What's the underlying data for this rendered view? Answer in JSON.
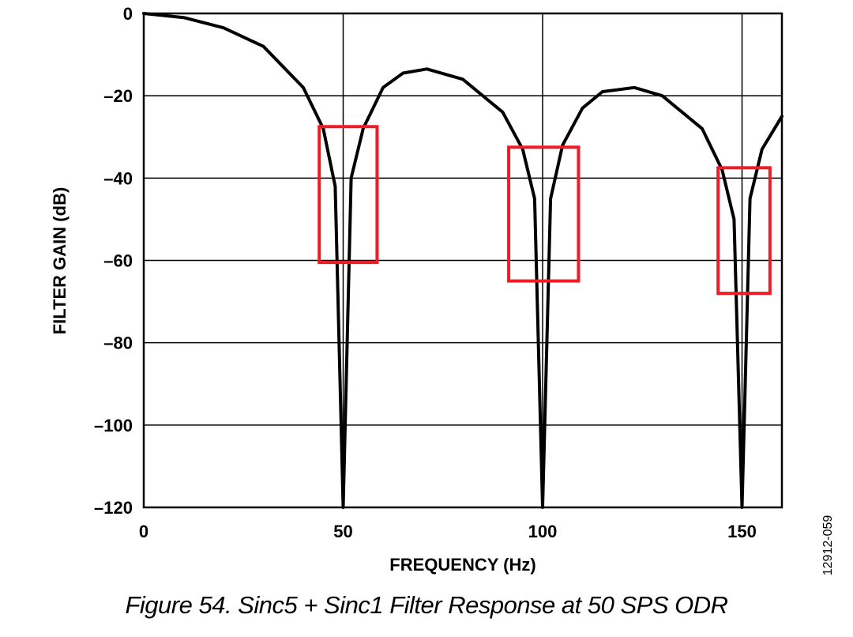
{
  "chart_data": {
    "type": "line",
    "title": "",
    "xlabel": "FREQUENCY (Hz)",
    "ylabel": "FILTER GAIN (dB)",
    "xlim": [
      0,
      160
    ],
    "ylim": [
      -120,
      0
    ],
    "grid": true,
    "x_ticks": [
      0,
      50,
      100,
      150
    ],
    "x_tick_labels": [
      "0",
      "50",
      "100",
      "150"
    ],
    "y_ticks": [
      0,
      -20,
      -40,
      -60,
      -80,
      -100,
      -120
    ],
    "y_tick_labels": [
      "0",
      "–20",
      "–40",
      "–60",
      "–80",
      "–100",
      "–120"
    ],
    "series": [
      {
        "name": "Sinc5 + Sinc1 response",
        "x": [
          0,
          10,
          20,
          30,
          40,
          45,
          48,
          50,
          52,
          55,
          60,
          65,
          71,
          80,
          90,
          95,
          98,
          100,
          102,
          105,
          110,
          115,
          123,
          130,
          140,
          145,
          148,
          150,
          152,
          155,
          160
        ],
        "y": [
          0,
          -1,
          -3.5,
          -8,
          -18,
          -28,
          -42,
          -120,
          -40,
          -28,
          -18,
          -14.5,
          -13.5,
          -16,
          -24,
          -33,
          -45,
          -120,
          -45,
          -32,
          -23,
          -19,
          -18,
          -20,
          -28,
          -38,
          -50,
          -120,
          -45,
          -33,
          -25
        ]
      }
    ],
    "highlight_boxes": [
      {
        "x": [
          44,
          58.5
        ],
        "y": [
          -60.5,
          -27.5
        ]
      },
      {
        "x": [
          91.5,
          109
        ],
        "y": [
          -65,
          -32.5
        ]
      },
      {
        "x": [
          144,
          157
        ],
        "y": [
          -68,
          -37.5
        ]
      }
    ],
    "line_color": "#000000",
    "highlight_color": "#ee1c25"
  },
  "figure_id": "12912-059",
  "caption": "Figure 54. Sinc5 + Sinc1 Filter Response at 50 SPS ODR"
}
